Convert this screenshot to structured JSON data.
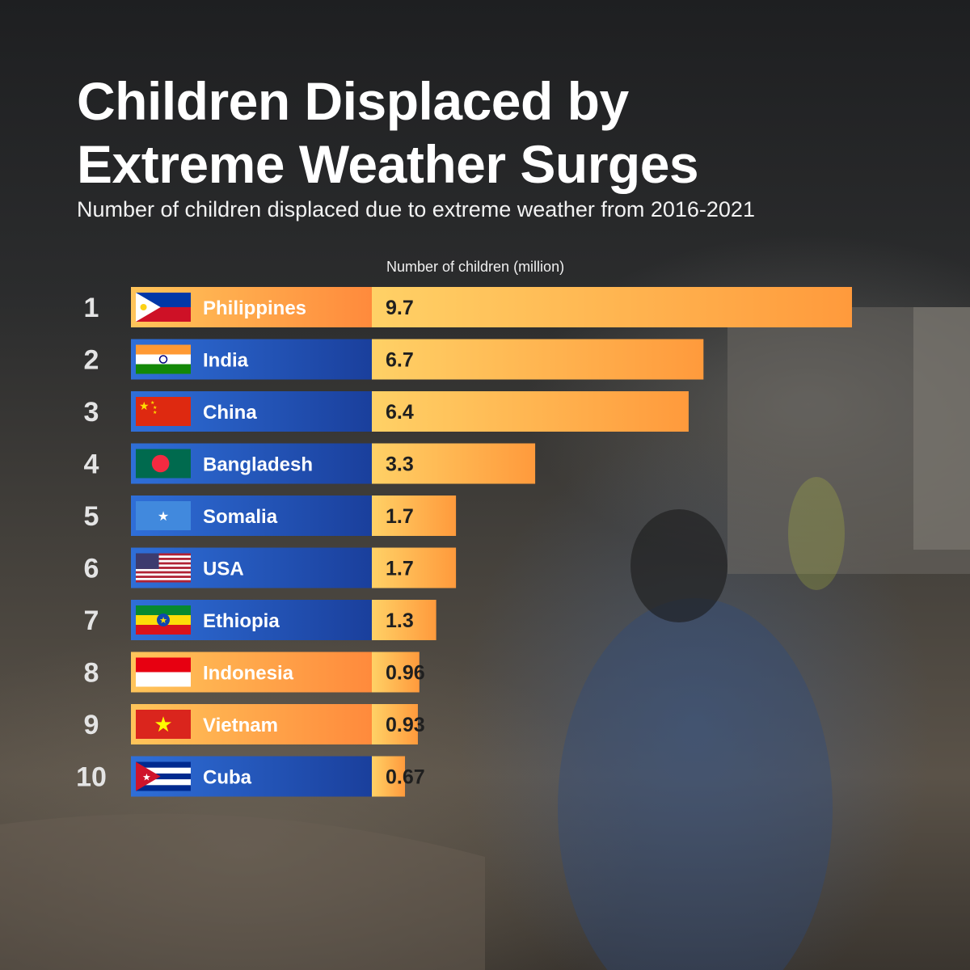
{
  "title_line1": "Children Displaced by",
  "title_line2": "Extreme Weather Surges",
  "subtitle": "Number of children displaced due to extreme weather from 2016-2021",
  "colors": {
    "bar_start": "#ffd166",
    "bar_end": "#ff9a3c",
    "label_blue": "#1e4fb3",
    "label_orange": "#ff9a3c"
  },
  "chart_data": {
    "type": "bar",
    "orientation": "horizontal",
    "value_axis_label": "Number of children (million)",
    "ranks": [
      "1",
      "2",
      "3",
      "4",
      "5",
      "6",
      "7",
      "8",
      "9",
      "10"
    ],
    "categories": [
      "Philippines",
      "India",
      "China",
      "Bangladesh",
      "Somalia",
      "USA",
      "Ethiopia",
      "Indonesia",
      "Vietnam",
      "Cuba"
    ],
    "values": [
      9.7,
      6.7,
      6.4,
      3.3,
      1.7,
      1.7,
      1.3,
      0.96,
      0.93,
      0.67
    ],
    "value_labels": [
      "9.7",
      "6.7",
      "6.4",
      "3.3",
      "1.7",
      "1.7",
      "1.3",
      "0.96",
      "0.93",
      "0.67"
    ],
    "label_styles": [
      "orange",
      "blue",
      "blue",
      "blue",
      "blue",
      "blue",
      "blue",
      "orange",
      "orange",
      "blue"
    ],
    "flags": [
      "philippines-flag",
      "india-flag",
      "china-flag",
      "bangladesh-flag",
      "somalia-flag",
      "usa-flag",
      "ethiopia-flag",
      "indonesia-flag",
      "vietnam-flag",
      "cuba-flag"
    ],
    "grid": false,
    "legend": "none"
  }
}
